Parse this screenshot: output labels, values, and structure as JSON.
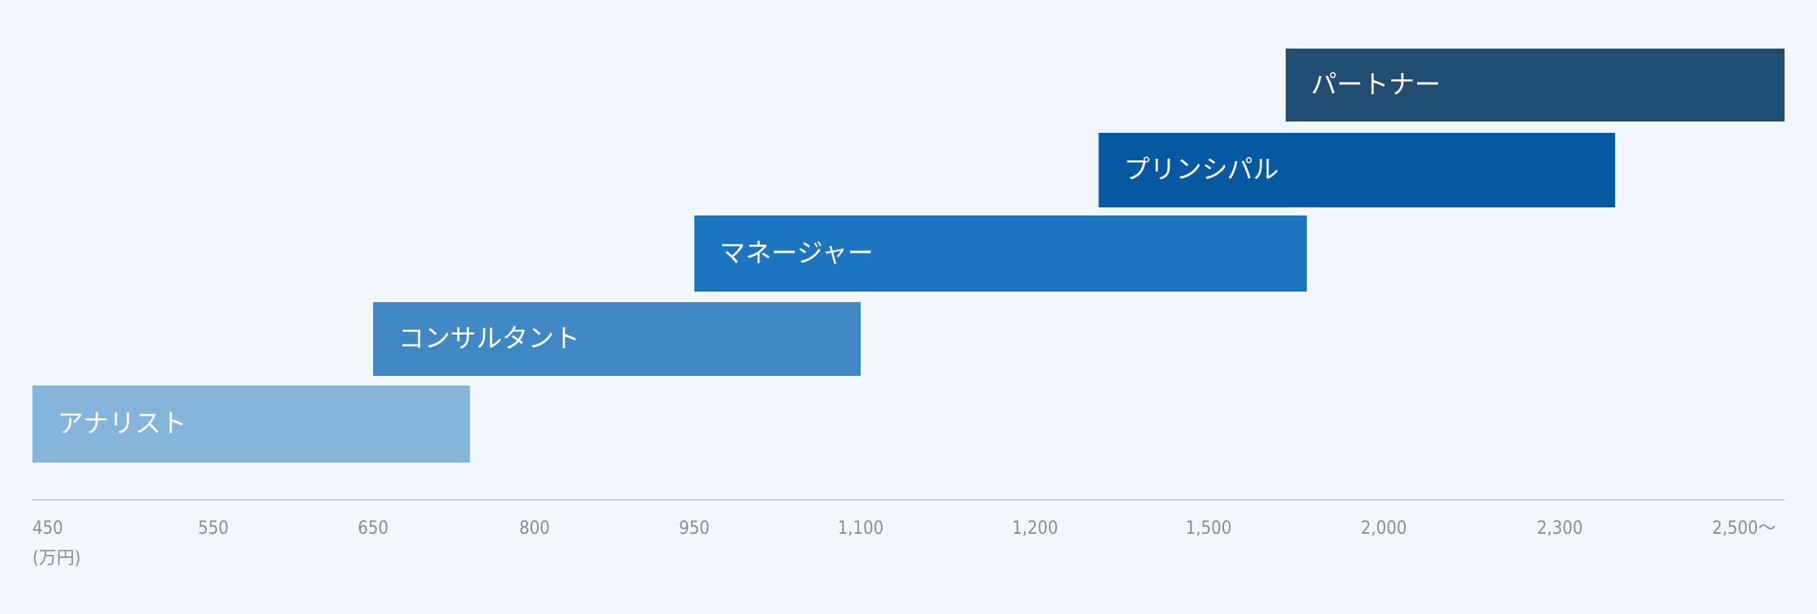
{
  "chart_data": {
    "type": "range-bar",
    "series": [
      {
        "name": "アナリスト",
        "color": "#86b5dc",
        "values": [
          450,
          740
        ]
      },
      {
        "name": "コンサルタント",
        "color": "#3f88c4",
        "values": [
          650,
          1100
        ]
      },
      {
        "name": "マネージャー",
        "color": "#1c76bf",
        "values": [
          950,
          1780
        ]
      },
      {
        "name": "プリンシパル",
        "color": "#0559a3",
        "values": [
          1310,
          2360
        ]
      },
      {
        "name": "パートナー",
        "color": "#214d73",
        "values": [
          1720,
          2550
        ]
      }
    ],
    "xlim": [
      450,
      2550
    ],
    "xticks": [
      450,
      550,
      650,
      800,
      950,
      {
        "value": 1100,
        "label": "1,100"
      },
      {
        "value": 1200,
        "label": "1,200"
      },
      {
        "value": 1500,
        "label": "1,500"
      },
      {
        "value": 2000,
        "label": "2,000"
      },
      {
        "value": 2300,
        "label": "2,300"
      },
      {
        "value": 2500,
        "label": "2,500～"
      }
    ],
    "x_unit": "(万円)",
    "grid": false
  }
}
